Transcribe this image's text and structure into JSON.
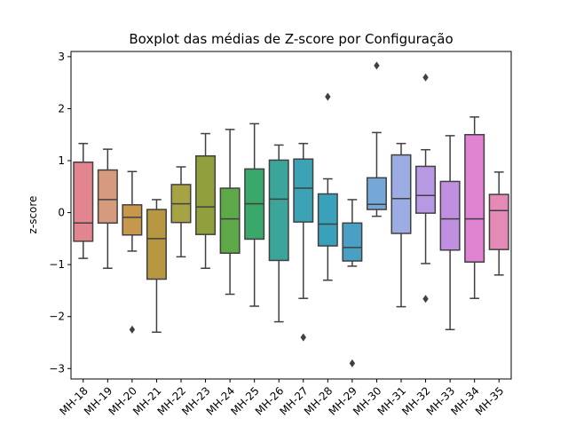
{
  "chart_data": {
    "type": "boxplot",
    "title": "Boxplot das médias de Z-score por Configuração",
    "xlabel": "",
    "ylabel": "z-score",
    "ylim": [
      -3.2,
      3.1
    ],
    "yticks": [
      -3,
      -2,
      -1,
      0,
      1,
      2,
      3
    ],
    "grid": false,
    "legend": "none",
    "categories": [
      "MH-18",
      "MH-19",
      "MH-20",
      "MH-21",
      "MH-22",
      "MH-23",
      "MH-24",
      "MH-25",
      "MH-26",
      "MH-27",
      "MH-28",
      "MH-29",
      "MH-30",
      "MH-31",
      "MH-32",
      "MH-33",
      "MH-34",
      "MH-35"
    ],
    "colors": [
      "#e2858e",
      "#d69b7e",
      "#c7984c",
      "#b89742",
      "#a5a344",
      "#929f3d",
      "#5ea947",
      "#3aa86a",
      "#3ba49b",
      "#3ca2b6",
      "#3aa1ba",
      "#4aa0c4",
      "#76a7d9",
      "#9bade3",
      "#b699e2",
      "#c18fe1",
      "#df83d2",
      "#e589b7"
    ],
    "boxes": [
      {
        "whislo": -0.88,
        "q1": -0.55,
        "med": -0.2,
        "q3": 0.97,
        "whishi": 1.33,
        "fliers": []
      },
      {
        "whislo": -1.07,
        "q1": -0.2,
        "med": 0.25,
        "q3": 0.82,
        "whishi": 1.22,
        "fliers": []
      },
      {
        "whislo": -0.74,
        "q1": -0.43,
        "med": -0.09,
        "q3": 0.15,
        "whishi": 0.79,
        "fliers": [
          -2.25
        ]
      },
      {
        "whislo": -2.3,
        "q1": -1.28,
        "med": -0.5,
        "q3": 0.06,
        "whishi": 0.25,
        "fliers": []
      },
      {
        "whislo": -0.85,
        "q1": -0.19,
        "med": 0.17,
        "q3": 0.54,
        "whishi": 0.88,
        "fliers": []
      },
      {
        "whislo": -1.07,
        "q1": -0.42,
        "med": 0.11,
        "q3": 1.09,
        "whishi": 1.52,
        "fliers": []
      },
      {
        "whislo": -1.57,
        "q1": -0.78,
        "med": -0.12,
        "q3": 0.47,
        "whishi": 1.6,
        "fliers": []
      },
      {
        "whislo": -1.8,
        "q1": -0.51,
        "med": 0.17,
        "q3": 0.84,
        "whishi": 1.71,
        "fliers": []
      },
      {
        "whislo": -2.1,
        "q1": -0.92,
        "med": 0.26,
        "q3": 1.01,
        "whishi": 1.3,
        "fliers": []
      },
      {
        "whislo": -1.65,
        "q1": -0.18,
        "med": 0.47,
        "q3": 1.03,
        "whishi": 1.33,
        "fliers": [
          -2.4
        ]
      },
      {
        "whislo": -1.3,
        "q1": -0.64,
        "med": -0.22,
        "q3": 0.36,
        "whishi": 0.65,
        "fliers": [
          2.23
        ]
      },
      {
        "whislo": -1.03,
        "q1": -0.93,
        "med": -0.67,
        "q3": -0.2,
        "whishi": 0.25,
        "fliers": [
          -2.9
        ]
      },
      {
        "whislo": -0.07,
        "q1": 0.06,
        "med": 0.16,
        "q3": 0.67,
        "whishi": 1.54,
        "fliers": [
          2.83
        ]
      },
      {
        "whislo": -1.81,
        "q1": -0.4,
        "med": 0.27,
        "q3": 1.11,
        "whishi": 1.33,
        "fliers": []
      },
      {
        "whislo": -0.98,
        "q1": -0.01,
        "med": 0.33,
        "q3": 0.89,
        "whishi": 1.21,
        "fliers": [
          2.6,
          -1.66
        ]
      },
      {
        "whislo": -2.25,
        "q1": -0.72,
        "med": -0.12,
        "q3": 0.6,
        "whishi": 1.48,
        "fliers": []
      },
      {
        "whislo": -1.65,
        "q1": -0.95,
        "med": -0.12,
        "q3": 1.5,
        "whishi": 1.84,
        "fliers": []
      },
      {
        "whislo": -1.2,
        "q1": -0.71,
        "med": 0.04,
        "q3": 0.35,
        "whishi": 0.78,
        "fliers": []
      }
    ]
  }
}
